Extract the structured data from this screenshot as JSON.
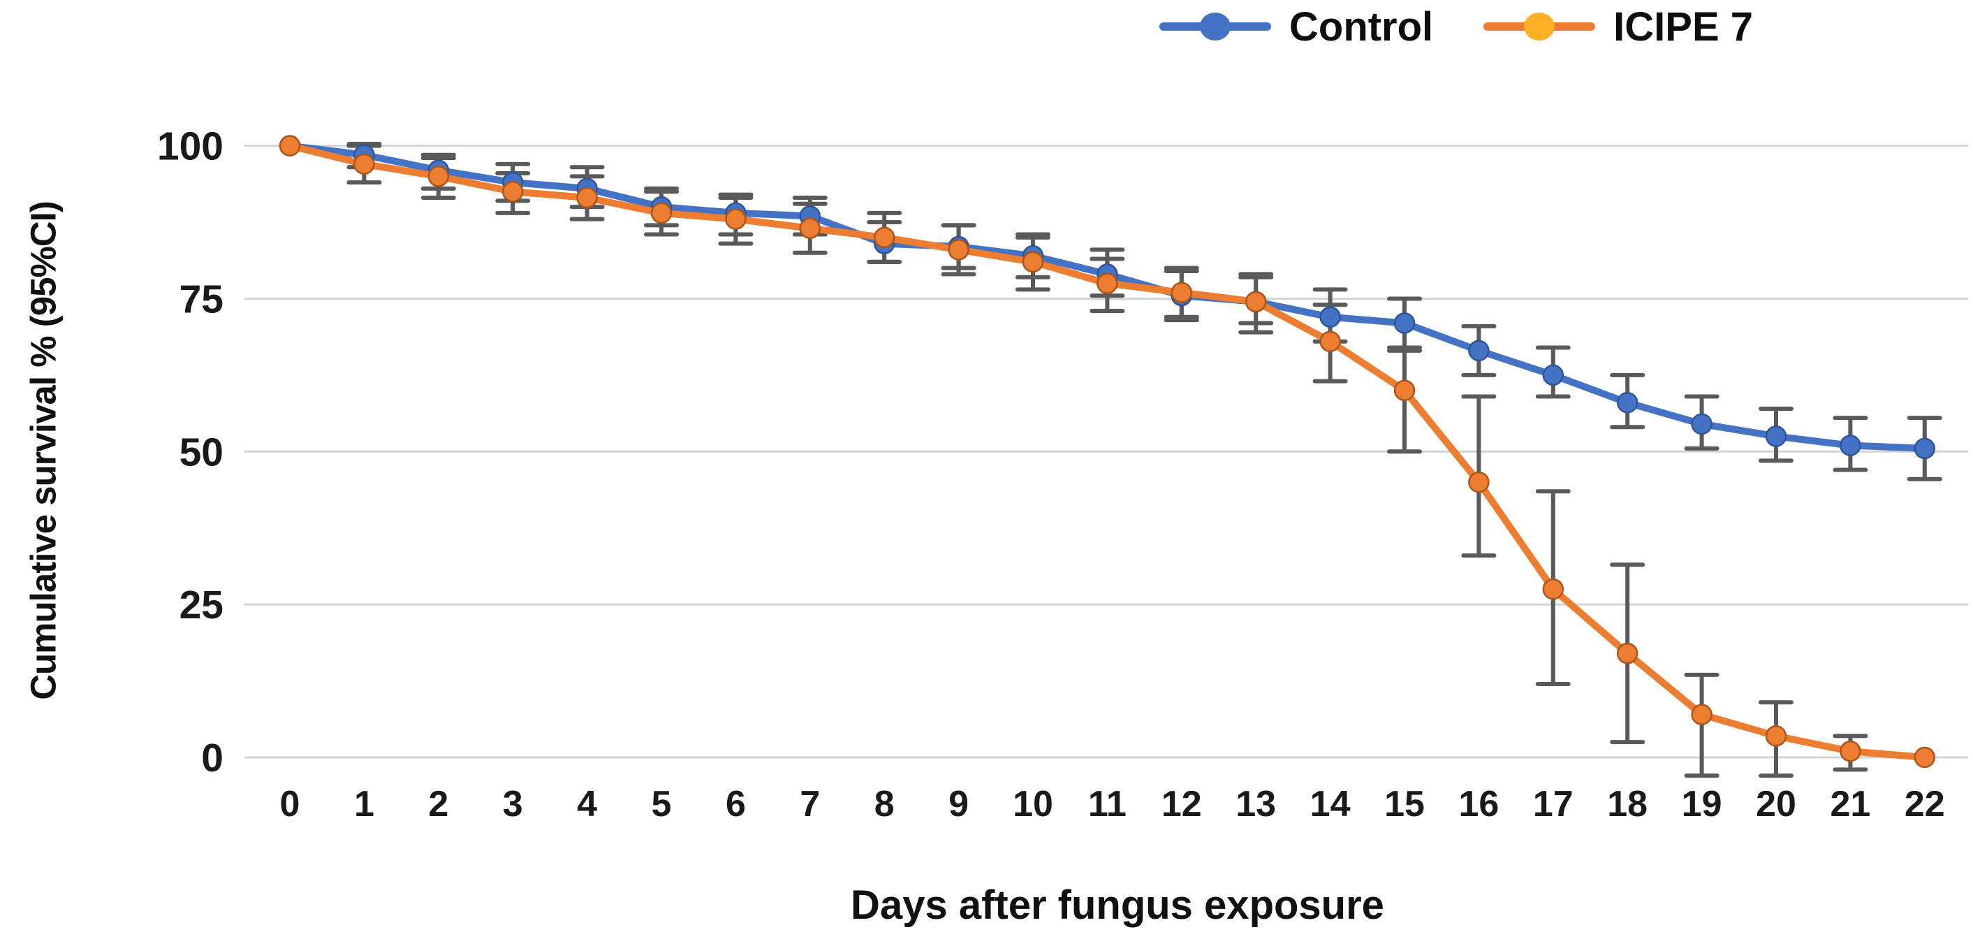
{
  "figure": {
    "background": "#ffffff",
    "gridline_color": "#d4d4d4",
    "errorbar_color": "#5a5a5a",
    "text_color": "#111111"
  },
  "legend": {
    "items": [
      {
        "label": "Control",
        "line_color": "#4472C4",
        "marker_color": "#4472C4",
        "marker_outline": "#2f5597"
      },
      {
        "label": "ICIPE 7",
        "line_color": "#ED7D31",
        "marker_color": "#FFB025",
        "marker_outline": "#ED7D31"
      }
    ]
  },
  "chart_data": {
    "type": "line",
    "title": "",
    "xlabel": "Days after fungus exposure",
    "ylabel": "Cumulative survival % (95%CI)",
    "x": [
      0,
      1,
      2,
      3,
      4,
      5,
      6,
      7,
      8,
      9,
      10,
      11,
      12,
      13,
      14,
      15,
      16,
      17,
      18,
      19,
      20,
      21,
      22
    ],
    "y_ticks": [
      0,
      25,
      50,
      75,
      100
    ],
    "ylim": [
      0,
      100
    ],
    "grid": true,
    "legend_position": "top-right",
    "error_bars": "95% CI",
    "series": [
      {
        "name": "Control",
        "color": "#4472C4",
        "marker_fill": "#4472C4",
        "marker_outline": "#2f5597",
        "values": [
          100,
          98.5,
          96,
          94,
          93,
          90,
          89,
          88.5,
          84,
          83.5,
          82,
          79,
          75.5,
          74.5,
          72,
          71,
          66.5,
          62.5,
          58,
          54.5,
          52.5,
          51,
          50.5
        ],
        "ci_low": [
          null,
          96.5,
          93,
          91,
          90,
          87,
          85.5,
          85.5,
          81,
          80,
          78.5,
          75.5,
          72,
          71,
          68,
          66.5,
          62.5,
          59,
          54,
          50.5,
          48.5,
          47,
          45.5
        ],
        "ci_high": [
          null,
          100.3,
          98.5,
          97,
          96.5,
          93,
          92,
          91.5,
          87.5,
          87,
          85.5,
          83,
          79.5,
          78.5,
          76.5,
          75,
          70.5,
          67,
          62.5,
          59,
          57,
          55.5,
          55.5
        ]
      },
      {
        "name": "ICIPE 7",
        "color": "#ED7D31",
        "marker_fill": "#ED7D31",
        "marker_outline": "#a8561c",
        "values": [
          100,
          97,
          95,
          92.5,
          91.5,
          89,
          88,
          86.5,
          85,
          83,
          81,
          77.5,
          76,
          74.5,
          68,
          60,
          45,
          27.5,
          17,
          7,
          3.5,
          1,
          0
        ],
        "ci_low": [
          null,
          94,
          91.5,
          89,
          88,
          85.5,
          84,
          82.5,
          81,
          79,
          76.5,
          73,
          71.5,
          69.5,
          61.5,
          50,
          33,
          12,
          2.5,
          -3,
          -3,
          -2,
          null
        ],
        "ci_high": [
          null,
          100,
          98,
          95.5,
          95,
          92.5,
          91.5,
          90.5,
          89,
          87,
          85,
          81.5,
          80,
          79,
          74,
          67,
          59,
          43.5,
          31.5,
          13.5,
          9,
          3.5,
          null
        ]
      }
    ]
  }
}
